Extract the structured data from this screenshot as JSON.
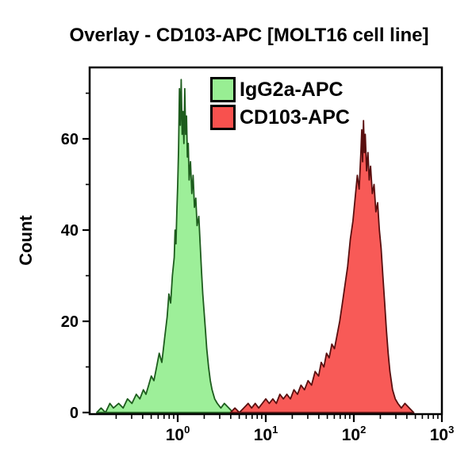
{
  "chart_data": {
    "type": "area",
    "subtype": "flow-cytometry-histogram-overlay",
    "title": "Overlay - CD103-APC [MOLT16 cell line]",
    "xlabel": "",
    "ylabel": "Count",
    "x_scale": "log10",
    "x_range_log": [
      -1,
      3
    ],
    "y_range": [
      0,
      76
    ],
    "grid": false,
    "frame": true,
    "y_major_ticks": [
      {
        "value": 0,
        "label": "0"
      },
      {
        "value": 20,
        "label": "20"
      },
      {
        "value": 40,
        "label": "40"
      },
      {
        "value": 60,
        "label": "60"
      }
    ],
    "y_minor_ticks": [
      10,
      30,
      50,
      70
    ],
    "x_major_ticks": [
      {
        "log": 0,
        "base": "10",
        "exp": "0"
      },
      {
        "log": 1,
        "base": "10",
        "exp": "1"
      },
      {
        "log": 2,
        "base": "10",
        "exp": "2"
      },
      {
        "log": 3,
        "base": "10",
        "exp": "3"
      }
    ],
    "x_minor_decades": [
      -1,
      0,
      1,
      2
    ],
    "legend": {
      "position": "top-center-inside",
      "items": [
        {
          "label": "IgG2a-APC",
          "color": "#98ee93"
        },
        {
          "label": "CD103-APC",
          "color": "#f8514e"
        }
      ]
    },
    "series": [
      {
        "name": "IgG2a-APC",
        "fill": "#98ee93",
        "outline": "#1d5c1d",
        "peak_log10_x": 0.04,
        "peak_count": 73,
        "points": [
          [
            -0.92,
            0
          ],
          [
            -0.87,
            1
          ],
          [
            -0.82,
            0
          ],
          [
            -0.77,
            2
          ],
          [
            -0.73,
            1
          ],
          [
            -0.67,
            2
          ],
          [
            -0.62,
            1
          ],
          [
            -0.57,
            3
          ],
          [
            -0.52,
            2
          ],
          [
            -0.47,
            4
          ],
          [
            -0.43,
            3
          ],
          [
            -0.39,
            5
          ],
          [
            -0.36,
            4
          ],
          [
            -0.33,
            6
          ],
          [
            -0.3,
            8
          ],
          [
            -0.27,
            7
          ],
          [
            -0.24,
            10
          ],
          [
            -0.21,
            13
          ],
          [
            -0.18,
            11
          ],
          [
            -0.15,
            16
          ],
          [
            -0.12,
            21
          ],
          [
            -0.1,
            26
          ],
          [
            -0.08,
            24
          ],
          [
            -0.06,
            30
          ],
          [
            -0.04,
            34
          ],
          [
            -0.03,
            40
          ],
          [
            -0.02,
            37
          ],
          [
            -0.01,
            44
          ],
          [
            0.0,
            50
          ],
          [
            0.01,
            58
          ],
          [
            0.02,
            71
          ],
          [
            0.03,
            63
          ],
          [
            0.04,
            73
          ],
          [
            0.05,
            61
          ],
          [
            0.06,
            66
          ],
          [
            0.07,
            59
          ],
          [
            0.08,
            71
          ],
          [
            0.09,
            61
          ],
          [
            0.1,
            65
          ],
          [
            0.11,
            56
          ],
          [
            0.12,
            59
          ],
          [
            0.13,
            51
          ],
          [
            0.145,
            55
          ],
          [
            0.16,
            48
          ],
          [
            0.175,
            52
          ],
          [
            0.19,
            45
          ],
          [
            0.205,
            47
          ],
          [
            0.22,
            41
          ],
          [
            0.24,
            43
          ],
          [
            0.255,
            37
          ],
          [
            0.27,
            31
          ],
          [
            0.285,
            26
          ],
          [
            0.3,
            22
          ],
          [
            0.315,
            18
          ],
          [
            0.33,
            14
          ],
          [
            0.35,
            10
          ],
          [
            0.37,
            7
          ],
          [
            0.39,
            5
          ],
          [
            0.42,
            3
          ],
          [
            0.45,
            2
          ],
          [
            0.49,
            1
          ],
          [
            0.53,
            2
          ],
          [
            0.58,
            1
          ],
          [
            0.63,
            0
          ]
        ]
      },
      {
        "name": "CD103-APC",
        "fill": "#f8514e",
        "outline": "#5a0f0f",
        "peak_log10_x": 2.11,
        "peak_count": 64,
        "points": [
          [
            0.6,
            0
          ],
          [
            0.65,
            1
          ],
          [
            0.7,
            0
          ],
          [
            0.75,
            1
          ],
          [
            0.8,
            2
          ],
          [
            0.84,
            1
          ],
          [
            0.88,
            2
          ],
          [
            0.92,
            1
          ],
          [
            0.96,
            2
          ],
          [
            1.0,
            3
          ],
          [
            1.04,
            2
          ],
          [
            1.08,
            3
          ],
          [
            1.12,
            2
          ],
          [
            1.16,
            4
          ],
          [
            1.2,
            3
          ],
          [
            1.24,
            4
          ],
          [
            1.28,
            3
          ],
          [
            1.32,
            5
          ],
          [
            1.36,
            4
          ],
          [
            1.4,
            6
          ],
          [
            1.44,
            5
          ],
          [
            1.48,
            7
          ],
          [
            1.52,
            6
          ],
          [
            1.56,
            9
          ],
          [
            1.6,
            8
          ],
          [
            1.63,
            11
          ],
          [
            1.66,
            10
          ],
          [
            1.69,
            13
          ],
          [
            1.72,
            12
          ],
          [
            1.75,
            15
          ],
          [
            1.78,
            14
          ],
          [
            1.81,
            17
          ],
          [
            1.84,
            20
          ],
          [
            1.87,
            24
          ],
          [
            1.9,
            28
          ],
          [
            1.93,
            32
          ],
          [
            1.96,
            38
          ],
          [
            1.99,
            42
          ],
          [
            2.02,
            48
          ],
          [
            2.04,
            52
          ],
          [
            2.06,
            49
          ],
          [
            2.08,
            57
          ],
          [
            2.09,
            62
          ],
          [
            2.1,
            55
          ],
          [
            2.11,
            64
          ],
          [
            2.12,
            57
          ],
          [
            2.13,
            61
          ],
          [
            2.145,
            53
          ],
          [
            2.16,
            57
          ],
          [
            2.175,
            51
          ],
          [
            2.19,
            54
          ],
          [
            2.21,
            48
          ],
          [
            2.23,
            50
          ],
          [
            2.25,
            44
          ],
          [
            2.27,
            46
          ],
          [
            2.29,
            40
          ],
          [
            2.31,
            36
          ],
          [
            2.33,
            30
          ],
          [
            2.35,
            24
          ],
          [
            2.37,
            18
          ],
          [
            2.39,
            13
          ],
          [
            2.41,
            9
          ],
          [
            2.44,
            5
          ],
          [
            2.47,
            3
          ],
          [
            2.5,
            2
          ],
          [
            2.54,
            1
          ],
          [
            2.58,
            2
          ],
          [
            2.63,
            1
          ],
          [
            2.68,
            0
          ]
        ]
      }
    ]
  }
}
